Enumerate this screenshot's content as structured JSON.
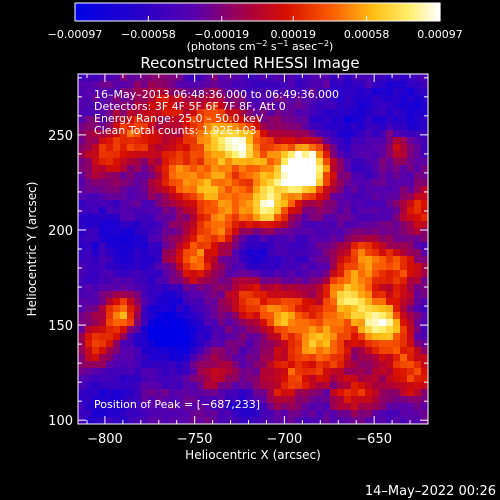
{
  "chart_data": {
    "type": "heatmap",
    "title": "Reconstructed RHESSI Image",
    "xlabel": "Heliocentric X (arcsec)",
    "ylabel": "Heliocentric Y (arcsec)",
    "xlim": [
      -815,
      -620
    ],
    "ylim": [
      98,
      282
    ],
    "x_ticks": [
      -800,
      -750,
      -700,
      -650
    ],
    "y_ticks": [
      100,
      150,
      200,
      250
    ],
    "x_tick_labels": [
      "−800",
      "−750",
      "−700",
      "−650"
    ],
    "y_tick_labels": [
      "100",
      "150",
      "200",
      "250"
    ],
    "colorbar": {
      "range": [
        -0.00097,
        0.00097
      ],
      "tick_values": [
        -0.00097,
        -0.00058,
        -0.00019,
        0.00019,
        0.00058,
        0.00097
      ],
      "tick_labels": [
        "−0.00097",
        "−0.00058",
        "−0.00019",
        "0.00019",
        "0.00058",
        "0.00097"
      ],
      "unit_label_main": "(photons cm",
      "unit_sup1": "−2",
      "unit_mid": " s",
      "unit_sup2": "−1",
      "unit_mid2": " asec",
      "unit_sup3": "−2",
      "unit_end": ")"
    },
    "info_lines": [
      "16–May–2013 06:48:36.000 to 06:49:36.000",
      "Detectors: 3F 4F 5F 6F 7F 8F, Att 0",
      "Energy Range: 25.0 – 50.0 keV",
      "Clean     Total counts: 1.92E+03"
    ],
    "peak_label": "Position of Peak = [−687,233]",
    "peak": {
      "x": -687,
      "y": 233
    },
    "peak_value": 0.00097,
    "grid": false,
    "hotspots": [
      {
        "x": -687,
        "y": 233,
        "amp": 1.0,
        "r": 9
      },
      {
        "x": -700,
        "y": 228,
        "amp": 0.7,
        "r": 12
      },
      {
        "x": -725,
        "y": 245,
        "amp": 0.8,
        "r": 10
      },
      {
        "x": -745,
        "y": 255,
        "amp": 0.55,
        "r": 11
      },
      {
        "x": -712,
        "y": 210,
        "amp": 0.75,
        "r": 9
      },
      {
        "x": -740,
        "y": 220,
        "amp": 0.6,
        "r": 12
      },
      {
        "x": -760,
        "y": 230,
        "amp": 0.45,
        "r": 10
      },
      {
        "x": -783,
        "y": 250,
        "amp": 0.5,
        "r": 10
      },
      {
        "x": -800,
        "y": 238,
        "amp": 0.4,
        "r": 9
      },
      {
        "x": -770,
        "y": 268,
        "amp": 0.3,
        "r": 8
      },
      {
        "x": -790,
        "y": 155,
        "amp": 0.75,
        "r": 8
      },
      {
        "x": -805,
        "y": 140,
        "amp": 0.45,
        "r": 7
      },
      {
        "x": -750,
        "y": 185,
        "amp": 0.55,
        "r": 9
      },
      {
        "x": -735,
        "y": 200,
        "amp": 0.45,
        "r": 8
      },
      {
        "x": -645,
        "y": 150,
        "amp": 0.95,
        "r": 10
      },
      {
        "x": -665,
        "y": 165,
        "amp": 0.75,
        "r": 10
      },
      {
        "x": -680,
        "y": 140,
        "amp": 0.7,
        "r": 11
      },
      {
        "x": -700,
        "y": 155,
        "amp": 0.6,
        "r": 10
      },
      {
        "x": -720,
        "y": 165,
        "amp": 0.5,
        "r": 9
      },
      {
        "x": -655,
        "y": 185,
        "amp": 0.55,
        "r": 9
      },
      {
        "x": -635,
        "y": 180,
        "amp": 0.5,
        "r": 8
      },
      {
        "x": -630,
        "y": 125,
        "amp": 0.55,
        "r": 9
      },
      {
        "x": -660,
        "y": 115,
        "amp": 0.45,
        "r": 9
      },
      {
        "x": -700,
        "y": 120,
        "amp": 0.45,
        "r": 10
      },
      {
        "x": -740,
        "y": 130,
        "amp": 0.35,
        "r": 9
      },
      {
        "x": -625,
        "y": 210,
        "amp": 0.5,
        "r": 8
      },
      {
        "x": -640,
        "y": 245,
        "amp": 0.3,
        "r": 8
      }
    ],
    "coldspots": [
      {
        "x": -770,
        "y": 150,
        "amp": 0.6,
        "r": 12
      },
      {
        "x": -755,
        "y": 140,
        "amp": 0.55,
        "r": 10
      },
      {
        "x": -790,
        "y": 190,
        "amp": 0.45,
        "r": 11
      },
      {
        "x": -715,
        "y": 190,
        "amp": 0.4,
        "r": 10
      },
      {
        "x": -660,
        "y": 260,
        "amp": 0.45,
        "r": 13
      },
      {
        "x": -630,
        "y": 265,
        "amp": 0.4,
        "r": 10
      },
      {
        "x": -800,
        "y": 110,
        "amp": 0.35,
        "r": 10
      },
      {
        "x": -720,
        "y": 105,
        "amp": 0.3,
        "r": 8
      },
      {
        "x": -810,
        "y": 205,
        "amp": 0.3,
        "r": 8
      }
    ]
  },
  "footer": {
    "timestamp": "14–May–2022 00:26"
  }
}
